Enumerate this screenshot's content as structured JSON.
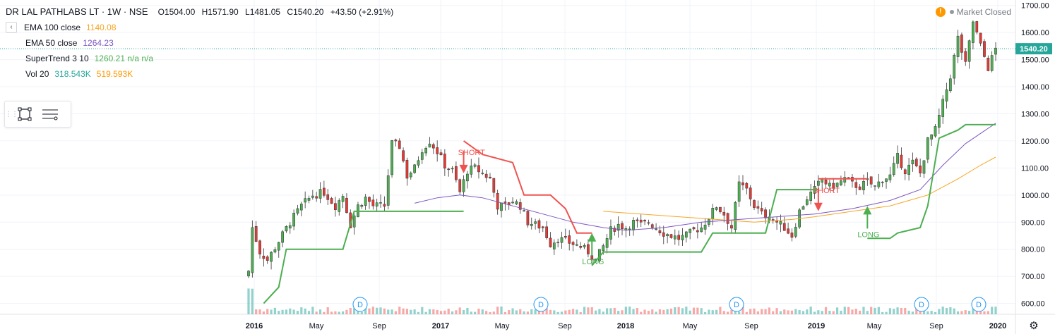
{
  "header": {
    "title": "DR LAL PATHLABS LT · 1W · NSE",
    "open": "O1504.00",
    "high": "H1571.90",
    "low": "L1481.05",
    "close": "C1540.20",
    "change": "+43.50 (+2.91%)",
    "status": "Market Closed"
  },
  "indicators": [
    {
      "label": "EMA 100 close",
      "value": "1140.08",
      "color": "#f5a623"
    },
    {
      "label": "EMA 50 close",
      "value": "1264.23",
      "color": "#7e57c2"
    },
    {
      "label": "SuperTrend 3 10",
      "value": "1260.21  n/a  n/a",
      "color": "#4caf50",
      "value2": "n/a  n/a",
      "color2": "#ef5350"
    },
    {
      "label": "Vol 20",
      "value": "318.543K",
      "color": "#26a69a",
      "value2": "519.593K",
      "color2": "#ff9800"
    }
  ],
  "chart_data": {
    "type": "candlestick",
    "y_axis": {
      "ticks": [
        "1700.00",
        "1600.00",
        "1500.00",
        "1400.00",
        "1300.00",
        "1200.00",
        "1100.00",
        "1000.00",
        "900.00",
        "800.00",
        "700.00",
        "600.00"
      ],
      "range": [
        560,
        1720
      ]
    },
    "last_price_label": "1540.20",
    "x_ticks": [
      "2016",
      "May",
      "Sep",
      "2017",
      "May",
      "Sep",
      "2018",
      "May",
      "Sep",
      "2019",
      "May",
      "Sep",
      "2020"
    ],
    "annotations": [
      {
        "text": "SHORT",
        "date": "2017-03",
        "type": "short"
      },
      {
        "text": "LONG",
        "date": "2017-10",
        "type": "long"
      },
      {
        "text": "SHORT",
        "date": "2018-11",
        "type": "short"
      },
      {
        "text": "LONG",
        "date": "2019-01",
        "type": "long"
      }
    ],
    "dividend_markers": [
      "D",
      "D",
      "D",
      "D",
      "D"
    ],
    "close_path": [
      [
        0,
        720
      ],
      [
        1,
        880
      ],
      [
        3,
        790
      ],
      [
        5,
        760
      ],
      [
        8,
        830
      ],
      [
        11,
        900
      ],
      [
        14,
        960
      ],
      [
        17,
        1000
      ],
      [
        20,
        1010
      ],
      [
        23,
        960
      ],
      [
        25,
        1000
      ],
      [
        27,
        890
      ],
      [
        29,
        960
      ],
      [
        31,
        990
      ],
      [
        33,
        960
      ],
      [
        36,
        960
      ],
      [
        38,
        1190
      ],
      [
        40,
        1180
      ],
      [
        42,
        1070
      ],
      [
        44,
        1100
      ],
      [
        46,
        1170
      ],
      [
        48,
        1200
      ],
      [
        50,
        1160
      ],
      [
        52,
        1110
      ],
      [
        54,
        1090
      ],
      [
        56,
        1010
      ],
      [
        58,
        1090
      ],
      [
        60,
        1100
      ],
      [
        62,
        1080
      ],
      [
        64,
        1060
      ],
      [
        66,
        960
      ],
      [
        68,
        960
      ],
      [
        70,
        980
      ],
      [
        72,
        960
      ],
      [
        74,
        900
      ],
      [
        76,
        890
      ],
      [
        78,
        880
      ],
      [
        80,
        820
      ],
      [
        82,
        840
      ],
      [
        84,
        830
      ],
      [
        86,
        820
      ],
      [
        88,
        810
      ],
      [
        90,
        790
      ],
      [
        92,
        760
      ],
      [
        94,
        810
      ],
      [
        96,
        870
      ],
      [
        98,
        890
      ],
      [
        100,
        880
      ],
      [
        102,
        900
      ],
      [
        104,
        890
      ],
      [
        106,
        900
      ],
      [
        108,
        880
      ],
      [
        110,
        860
      ],
      [
        112,
        850
      ],
      [
        114,
        840
      ],
      [
        116,
        850
      ],
      [
        118,
        870
      ],
      [
        120,
        880
      ],
      [
        122,
        920
      ],
      [
        124,
        960
      ],
      [
        126,
        930
      ],
      [
        128,
        880
      ],
      [
        130,
        1040
      ],
      [
        132,
        1020
      ],
      [
        134,
        960
      ],
      [
        136,
        930
      ],
      [
        138,
        920
      ],
      [
        140,
        900
      ],
      [
        142,
        880
      ],
      [
        144,
        850
      ],
      [
        146,
        940
      ],
      [
        148,
        990
      ],
      [
        150,
        1020
      ],
      [
        152,
        1060
      ],
      [
        154,
        1030
      ],
      [
        156,
        1040
      ],
      [
        158,
        1060
      ],
      [
        160,
        1040
      ],
      [
        162,
        1030
      ],
      [
        164,
        1050
      ],
      [
        166,
        1030
      ],
      [
        168,
        1060
      ],
      [
        170,
        1070
      ],
      [
        172,
        1140
      ],
      [
        174,
        1090
      ],
      [
        176,
        1120
      ],
      [
        178,
        1080
      ],
      [
        180,
        1200
      ],
      [
        182,
        1240
      ],
      [
        184,
        1340
      ],
      [
        186,
        1440
      ],
      [
        188,
        1580
      ],
      [
        190,
        1480
      ],
      [
        192,
        1640
      ],
      [
        194,
        1550
      ],
      [
        196,
        1470
      ],
      [
        198,
        1540
      ]
    ],
    "supertrend_green": [
      [
        4,
        600
      ],
      [
        8,
        660
      ],
      [
        10,
        800
      ],
      [
        25,
        800
      ],
      [
        28,
        940
      ],
      [
        57,
        940
      ]
    ],
    "supertrend_red": [
      [
        57,
        1200
      ],
      [
        62,
        1150
      ],
      [
        70,
        1120
      ],
      [
        73,
        1000
      ],
      [
        80,
        1000
      ],
      [
        84,
        950
      ],
      [
        87,
        860
      ],
      [
        91,
        860
      ]
    ],
    "supertrend_green2": [
      [
        91,
        740
      ],
      [
        94,
        790
      ],
      [
        120,
        790
      ],
      [
        123,
        860
      ],
      [
        137,
        860
      ],
      [
        140,
        1020
      ],
      [
        151,
        1020
      ]
    ],
    "supertrend_red2": [
      [
        151,
        1060
      ],
      [
        164,
        1060
      ]
    ],
    "supertrend_green3": [
      [
        164,
        840
      ],
      [
        170,
        840
      ],
      [
        172,
        860
      ],
      [
        178,
        880
      ],
      [
        180,
        960
      ],
      [
        183,
        1210
      ],
      [
        188,
        1240
      ],
      [
        190,
        1260
      ],
      [
        198,
        1260
      ]
    ],
    "ema50_path": [
      [
        44,
        970
      ],
      [
        50,
        990
      ],
      [
        56,
        1000
      ],
      [
        62,
        990
      ],
      [
        70,
        960
      ],
      [
        78,
        930
      ],
      [
        86,
        900
      ],
      [
        94,
        880
      ],
      [
        100,
        870
      ],
      [
        110,
        880
      ],
      [
        120,
        900
      ],
      [
        130,
        910
      ],
      [
        140,
        920
      ],
      [
        150,
        930
      ],
      [
        160,
        950
      ],
      [
        170,
        980
      ],
      [
        178,
        1020
      ],
      [
        184,
        1110
      ],
      [
        190,
        1190
      ],
      [
        198,
        1265
      ]
    ],
    "ema100_path": [
      [
        94,
        940
      ],
      [
        104,
        930
      ],
      [
        114,
        920
      ],
      [
        124,
        910
      ],
      [
        134,
        900
      ],
      [
        144,
        910
      ],
      [
        150,
        920
      ],
      [
        160,
        940
      ],
      [
        170,
        960
      ],
      [
        180,
        1000
      ],
      [
        188,
        1060
      ],
      [
        194,
        1110
      ],
      [
        198,
        1140
      ]
    ]
  }
}
